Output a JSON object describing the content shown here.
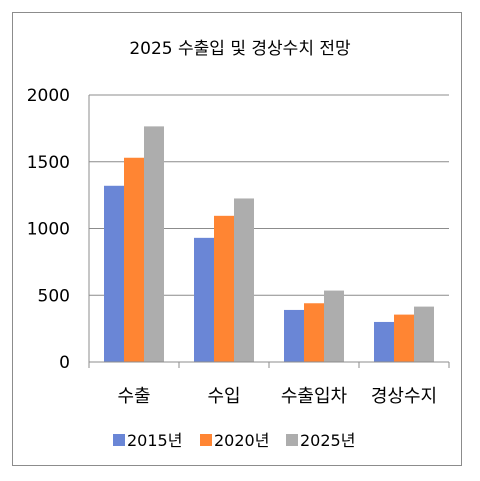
{
  "chart_data": {
    "type": "bar",
    "title": "2025 수출입 및 경상수치 전망",
    "categories": [
      "수출",
      "수입",
      "수출입차",
      "경상수지"
    ],
    "series": [
      {
        "name": "2015년",
        "color": "#6a86d6",
        "values": [
          1320,
          930,
          390,
          300
        ]
      },
      {
        "name": "2020년",
        "color": "#ff8533",
        "values": [
          1530,
          1095,
          440,
          355
        ]
      },
      {
        "name": "2025년",
        "color": "#adadad",
        "values": [
          1765,
          1225,
          535,
          415
        ]
      }
    ],
    "ylim": [
      0,
      2000
    ],
    "yticks": [
      "0",
      "500",
      "1000",
      "1500",
      "2000"
    ],
    "grid": true,
    "legend": "bottom"
  }
}
